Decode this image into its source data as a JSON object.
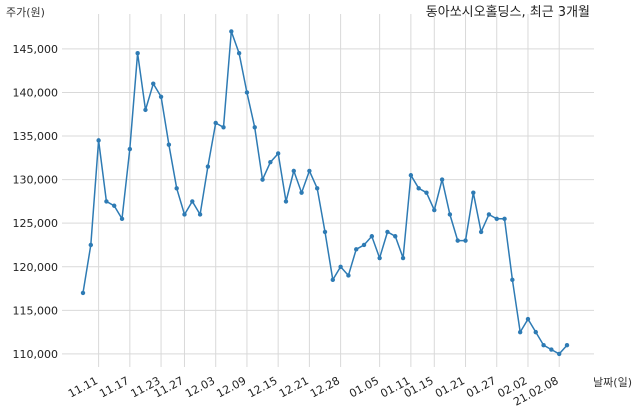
{
  "chart_data": {
    "type": "line",
    "title": "동아쏘시오홀딩스, 최근 3개월",
    "ylabel": "주가(원)",
    "xlabel": "날짜(일)",
    "ylim": [
      108500,
      149000
    ],
    "yticks": [
      110000,
      115000,
      120000,
      125000,
      130000,
      135000,
      140000,
      145000
    ],
    "ytick_labels": [
      "110,000",
      "115,000",
      "120,000",
      "125,000",
      "130,000",
      "135,000",
      "140,000",
      "145,000"
    ],
    "xtick_labels": [
      "11.11",
      "11.17",
      "11.23",
      "11.27",
      "12.03",
      "12.09",
      "12.15",
      "12.21",
      "12.28",
      "01.05",
      "01.11",
      "01.15",
      "01.21",
      "01.27",
      "02.02",
      "21.02.08"
    ],
    "xtick_index": [
      2,
      6,
      10,
      13,
      17,
      21,
      25,
      29,
      33,
      38,
      42,
      45,
      49,
      53,
      57,
      61
    ],
    "grid": true,
    "series_color": "#2e7bb4",
    "values": [
      117000,
      122500,
      134500,
      127500,
      127000,
      125500,
      133500,
      144500,
      138000,
      141000,
      139500,
      134000,
      129000,
      126000,
      127500,
      126000,
      131500,
      136500,
      136000,
      147000,
      144500,
      140000,
      136000,
      130000,
      132000,
      133000,
      127500,
      131000,
      128500,
      131000,
      129000,
      124000,
      118500,
      120000,
      119000,
      122000,
      122500,
      123500,
      121000,
      124000,
      123500,
      121000,
      130500,
      129000,
      128500,
      126500,
      130000,
      126000,
      123000,
      123000,
      128500,
      124000,
      126000,
      125500,
      125500,
      118500,
      112500,
      114000,
      112500,
      111000,
      110500,
      110000,
      111000
    ]
  }
}
